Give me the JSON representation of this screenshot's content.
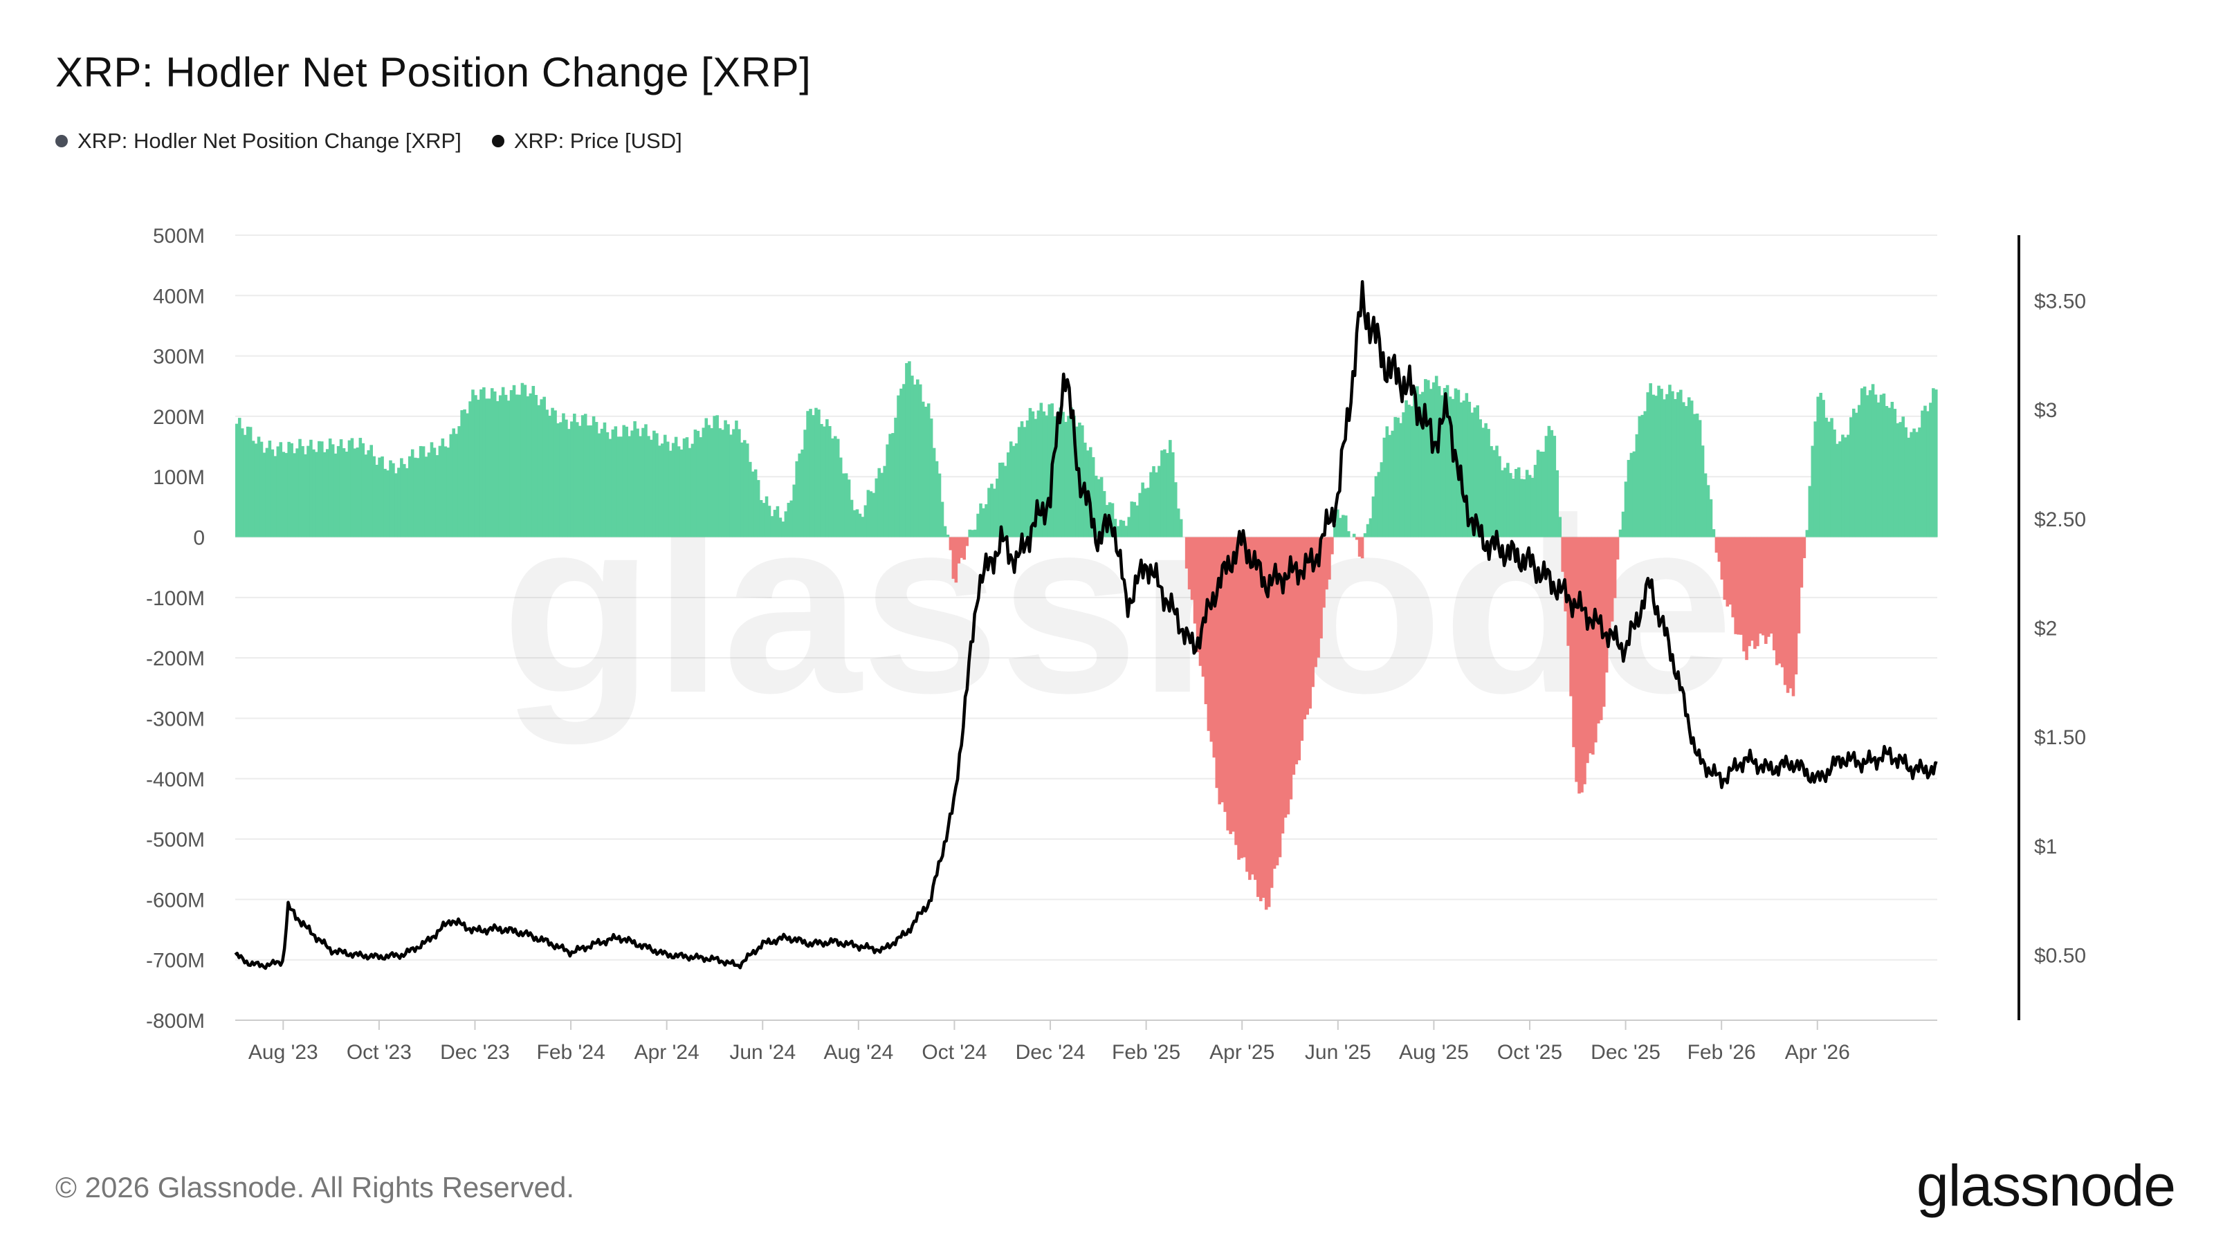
{
  "title": "XRP: Hodler Net Position Change [XRP]",
  "legend": [
    {
      "label": "XRP: Hodler Net Position Change [XRP]",
      "color": "#4a4f5a"
    },
    {
      "label": "XRP: Price [USD]",
      "color": "#111111"
    }
  ],
  "watermark": "glassnode",
  "footer": {
    "copyright": "© 2026 Glassnode. All Rights Reserved.",
    "logo": "glassnode"
  },
  "colors": {
    "positive": "#5dd19f",
    "negative": "#f07a7a",
    "price": "#000000",
    "grid": "#ececec",
    "axis_text": "#555555"
  },
  "chart_data": {
    "type": "bar",
    "x_ticks": [
      "Aug '23",
      "Oct '23",
      "Dec '23",
      "Feb '24",
      "Apr '24",
      "Jun '24",
      "Aug '24",
      "Oct '24",
      "Dec '24",
      "Feb '25",
      "Apr '25",
      "Jun '25",
      "Aug '25",
      "Oct '25",
      "Dec '25",
      "Feb '26",
      "Apr '26"
    ],
    "y_left": {
      "ticks": [
        "500M",
        "400M",
        "300M",
        "200M",
        "100M",
        "0",
        "-100M",
        "-200M",
        "-300M",
        "-400M",
        "-500M",
        "-600M",
        "-700M",
        "-800M"
      ],
      "min": -800,
      "max": 500,
      "unit": "M XRP"
    },
    "y_right": {
      "ticks": [
        "$3.50",
        "$3",
        "$2.50",
        "$2",
        "$1.50",
        "$1",
        "$0.50"
      ],
      "values": [
        3.5,
        3,
        2.5,
        2,
        1.5,
        1,
        0.5
      ],
      "min": 0.2,
      "max": 3.8
    },
    "series": [
      {
        "name": "XRP: Hodler Net Position Change [XRP]",
        "axis": "left",
        "kind": "bar",
        "values_anchor_months": [
          0,
          0.5,
          1,
          1.5,
          2,
          2.5,
          3,
          3.5,
          4,
          4.5,
          5,
          5.5,
          6,
          6.5,
          7,
          7.5,
          8,
          8.5,
          9,
          9.5,
          10,
          10.5,
          11,
          11.5,
          12,
          12.5,
          13,
          13.5,
          14,
          14.5,
          15,
          15.5,
          16,
          16.5,
          17,
          17.5,
          18,
          18.5,
          19,
          19.5,
          20,
          20.5,
          21,
          21.5,
          22,
          22.5,
          23,
          23.5,
          24,
          24.5,
          25,
          25.5,
          26,
          26.5,
          27,
          27.5,
          28,
          28.5,
          29,
          29.5,
          30,
          30.5,
          31,
          31.5,
          32,
          32.5,
          33,
          33.5,
          34,
          34.5,
          35,
          35.5
        ],
        "values": [
          190,
          150,
          155,
          140,
          160,
          150,
          130,
          120,
          140,
          170,
          230,
          245,
          240,
          220,
          190,
          185,
          180,
          170,
          165,
          150,
          200,
          180,
          60,
          40,
          210,
          180,
          20,
          120,
          285,
          200,
          -70,
          30,
          130,
          190,
          220,
          200,
          100,
          20,
          80,
          170,
          -150,
          -420,
          -540,
          -620,
          -430,
          -250,
          60,
          -40,
          180,
          220,
          260,
          240,
          190,
          120,
          90,
          200,
          -450,
          -300,
          100,
          240,
          250,
          200,
          -70,
          -200,
          -160,
          -270,
          240,
          160,
          240,
          230,
          160,
          250
        ]
      },
      {
        "name": "XRP: Price [USD]",
        "axis": "right",
        "kind": "line",
        "values_anchor_months": [
          0,
          0.3,
          0.6,
          1.0,
          1.1,
          1.5,
          2.0,
          2.5,
          3.0,
          3.5,
          4.0,
          4.5,
          5.0,
          5.5,
          6.0,
          6.5,
          7.0,
          7.5,
          8.0,
          8.5,
          9.0,
          9.5,
          10.0,
          10.5,
          11.0,
          11.5,
          12.0,
          12.5,
          13.0,
          13.5,
          14.0,
          14.5,
          15.0,
          15.5,
          16.0,
          16.3,
          16.6,
          17.0,
          17.3,
          17.6,
          18.0,
          18.3,
          18.6,
          19.0,
          19.5,
          20.0,
          20.5,
          21.0,
          21.5,
          22.0,
          22.5,
          23.0,
          23.5,
          24.0,
          24.5,
          25.0,
          25.3,
          25.6,
          26.0,
          26.5,
          27.0,
          27.5,
          28.0,
          28.5,
          29.0,
          29.5,
          30.0,
          30.5,
          31.0,
          31.5,
          32.0,
          32.5,
          33.0,
          33.5,
          34.0,
          34.5,
          35.0,
          35.5
        ],
        "values": [
          0.5,
          0.46,
          0.45,
          0.47,
          0.72,
          0.62,
          0.52,
          0.5,
          0.49,
          0.5,
          0.56,
          0.66,
          0.61,
          0.62,
          0.6,
          0.56,
          0.51,
          0.55,
          0.58,
          0.54,
          0.5,
          0.49,
          0.48,
          0.45,
          0.55,
          0.58,
          0.55,
          0.56,
          0.54,
          0.52,
          0.6,
          0.75,
          1.2,
          2.2,
          2.4,
          2.3,
          2.45,
          2.6,
          3.2,
          2.7,
          2.4,
          2.5,
          2.1,
          2.3,
          2.1,
          1.9,
          2.2,
          2.4,
          2.2,
          2.25,
          2.3,
          2.6,
          3.5,
          3.2,
          3.1,
          2.85,
          3.0,
          2.6,
          2.4,
          2.35,
          2.3,
          2.2,
          2.1,
          2.0,
          1.9,
          2.2,
          1.85,
          1.4,
          1.3,
          1.4,
          1.35,
          1.38,
          1.3,
          1.4,
          1.38,
          1.42,
          1.35,
          1.35
        ]
      }
    ],
    "grid": true,
    "legend_position": "top-left",
    "x_range_months": [
      0,
      35.5
    ]
  }
}
